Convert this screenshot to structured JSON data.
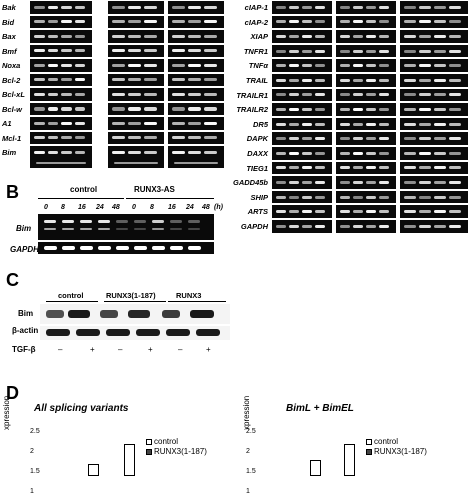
{
  "panel_a": {
    "left_genes": [
      "Bak",
      "Bid",
      "Bax",
      "Bmf",
      "Noxa",
      "Bcl-2",
      "Bcl-xL",
      "Bcl-w",
      "A1",
      "Mcl-1",
      "Bim"
    ],
    "right_genes": [
      "cIAP-1",
      "cIAP-2",
      "XIAP",
      "TNFR1",
      "TNFα",
      "TRAIL",
      "TRAILR1",
      "TRAILR2",
      "DR5",
      "DAPK",
      "DAXX",
      "TIEG1",
      "GADD45b",
      "SHIP",
      "ARTS",
      "GAPDH"
    ]
  },
  "panel_b": {
    "letter": "B",
    "group1": "control",
    "group2": "RUNX3-AS",
    "times": [
      "0",
      "8",
      "16",
      "24",
      "48"
    ],
    "unit": "(h)",
    "genes": [
      "Bim",
      "GAPDH"
    ]
  },
  "panel_c": {
    "letter": "C",
    "groups": [
      "control",
      "RUNX3(1-187)",
      "RUNX3"
    ],
    "rows": [
      "Bim",
      "β-actin"
    ],
    "tgf_label": "TGF-β",
    "treatment": [
      "–",
      "+",
      "–",
      "+",
      "–",
      "+"
    ]
  },
  "panel_d": {
    "letter": "D",
    "ylabel_fragment": "xpression",
    "chart_titles": [
      "All splicing variants",
      "BimL + BimEL"
    ]
  },
  "chart_data": [
    {
      "type": "bar",
      "title": "All splicing variants",
      "ylabel": "xpression",
      "y_ticks": [
        "2.5",
        "2",
        "1.5",
        "1"
      ],
      "ylim": [
        1,
        2.5
      ],
      "series": [
        {
          "name": "control",
          "values": [
            1.7
          ]
        },
        {
          "name": "RUNX3(1-187)",
          "values": [
            2.2
          ]
        }
      ]
    },
    {
      "type": "bar",
      "title": "BimL + BimEL",
      "ylabel": "xpression",
      "y_ticks": [
        "2.5",
        "2",
        "1.5",
        "1"
      ],
      "ylim": [
        1,
        2.5
      ],
      "series": [
        {
          "name": "control",
          "values": [
            1.8
          ]
        },
        {
          "name": "RUNX3(1-187)",
          "values": [
            2.2
          ]
        }
      ]
    }
  ]
}
